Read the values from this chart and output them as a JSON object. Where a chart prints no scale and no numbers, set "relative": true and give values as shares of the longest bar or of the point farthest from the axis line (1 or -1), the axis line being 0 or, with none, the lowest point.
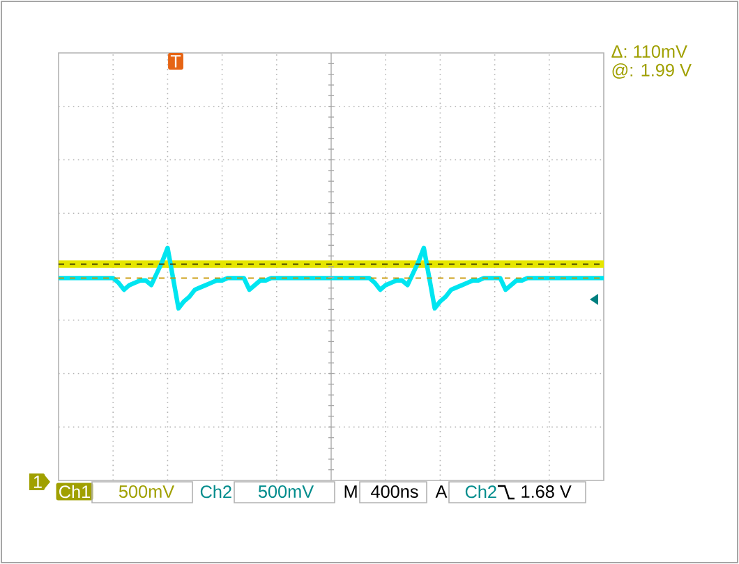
{
  "chart_data": {
    "type": "line",
    "relative": true,
    "grid": true,
    "categories": [
      null,
      null,
      null,
      null,
      null,
      null,
      null,
      null,
      null,
      null,
      null,
      null,
      null,
      null,
      null,
      null,
      null,
      null,
      null,
      null,
      null,
      null,
      null,
      null,
      null,
      null,
      null,
      null,
      null,
      null,
      null,
      null,
      null,
      null,
      null,
      null,
      null,
      null,
      null,
      null,
      null,
      null,
      null,
      null,
      null,
      null,
      null,
      null,
      null,
      null,
      null,
      null,
      null,
      null,
      null,
      null,
      null,
      null,
      null,
      null,
      null,
      null,
      null,
      null,
      null,
      null,
      null,
      null,
      null,
      null,
      null,
      null,
      null,
      null,
      null,
      null,
      null,
      null,
      null,
      null,
      null,
      null,
      null,
      null,
      null,
      null,
      null,
      null,
      null,
      null,
      null,
      null,
      null,
      null,
      null,
      null,
      null,
      null,
      null,
      null,
      null
    ],
    "series": [
      {
        "color": "#e6e600",
        "values": [
          0.93,
          0.93,
          0.93,
          0.93,
          0.93,
          0.93,
          0.93,
          0.93,
          0.93,
          0.93,
          0.93,
          0.93,
          0.93,
          0.93,
          0.93,
          0.93,
          0.93,
          0.93,
          0.93,
          0.93,
          0.93,
          0.93,
          0.93,
          0.93,
          0.93,
          0.93,
          0.93,
          0.93,
          0.93,
          0.93,
          0.93,
          0.93,
          0.93,
          0.93,
          0.93,
          0.93,
          0.93,
          0.93,
          0.93,
          0.93,
          0.93,
          0.93,
          0.93,
          0.93,
          0.93,
          0.93,
          0.93,
          0.93,
          0.93,
          0.93,
          0.93,
          0.93,
          0.93,
          0.93,
          0.93,
          0.93,
          0.93,
          0.93,
          0.93,
          0.93,
          0.93,
          0.93,
          0.93,
          0.93,
          0.93,
          0.93,
          0.93,
          0.93,
          0.93,
          0.93,
          0.93,
          0.93,
          0.93,
          0.93,
          0.93,
          0.93,
          0.93,
          0.93,
          0.93,
          0.93,
          0.93,
          0.93,
          0.93,
          0.93,
          0.93,
          0.93,
          0.93,
          0.93,
          0.93,
          0.93,
          0.93,
          0.93,
          0.93,
          0.93,
          0.93,
          0.93,
          0.93,
          0.93,
          0.93,
          0.93,
          0.93
        ]
      },
      {
        "color": "#00e5f0",
        "values": [
          0.87,
          0.87,
          0.87,
          0.87,
          0.87,
          0.87,
          0.87,
          0.87,
          0.87,
          0.87,
          0.87,
          0.85,
          0.82,
          0.84,
          0.85,
          0.86,
          0.86,
          0.84,
          0.89,
          0.94,
          1.0,
          0.87,
          0.74,
          0.77,
          0.79,
          0.82,
          0.83,
          0.84,
          0.85,
          0.86,
          0.86,
          0.87,
          0.87,
          0.87,
          0.87,
          0.82,
          0.84,
          0.86,
          0.86,
          0.87,
          0.87,
          0.87,
          0.87,
          0.87,
          0.87,
          0.87,
          0.87,
          0.87,
          0.87,
          0.87,
          0.87,
          0.87,
          0.87,
          0.87,
          0.87,
          0.87,
          0.87,
          0.87,
          0.85,
          0.82,
          0.84,
          0.85,
          0.86,
          0.86,
          0.84,
          0.89,
          0.94,
          1.0,
          0.87,
          0.74,
          0.77,
          0.79,
          0.82,
          0.83,
          0.84,
          0.85,
          0.86,
          0.86,
          0.87,
          0.87,
          0.87,
          0.87,
          0.82,
          0.84,
          0.86,
          0.86,
          0.87,
          0.87,
          0.87,
          0.87,
          0.87,
          0.87,
          0.87,
          0.87,
          0.87,
          0.87,
          0.87,
          0.87,
          0.87,
          0.87,
          0.87
        ]
      }
    ],
    "ref_lines": [
      {
        "axis": "y",
        "value": 0.93,
        "color": "#404000",
        "line_style": "dashed"
      },
      {
        "axis": "y",
        "value": 0.87,
        "color": "#c89600",
        "line_style": "dashed"
      }
    ],
    "annotations": [
      "Δ: 110mV",
      "@: 1.99 V",
      "Ch1",
      "500mV",
      "Ch2",
      "500mV",
      "M",
      "400ns",
      "A",
      "Ch2",
      "1.68 V",
      "T",
      "1"
    ]
  }
}
